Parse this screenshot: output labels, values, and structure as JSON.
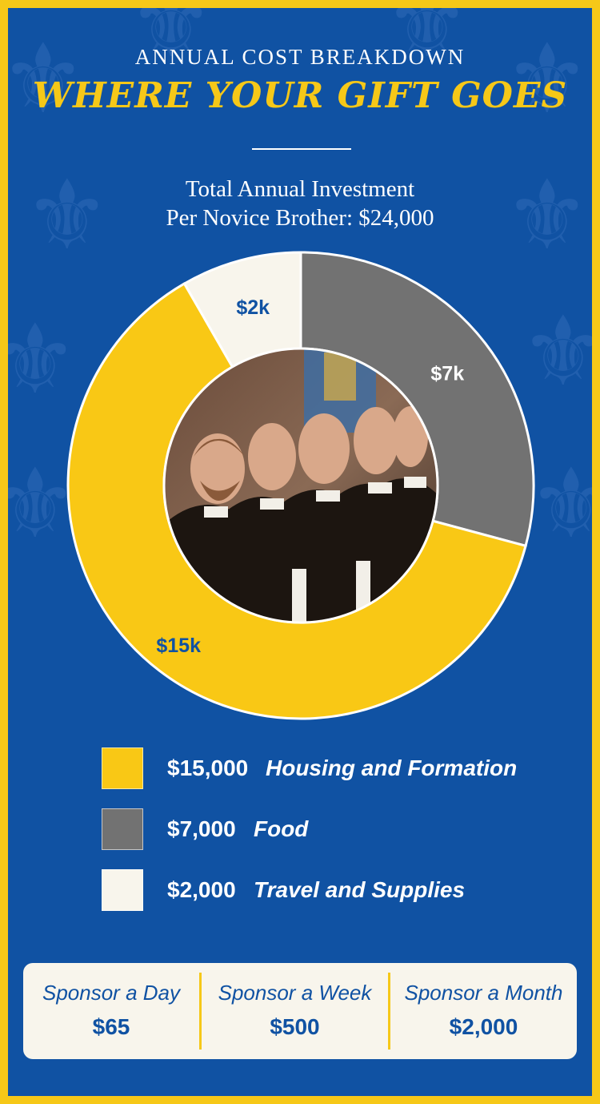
{
  "header": {
    "kicker": "ANNUAL COST BREAKDOWN",
    "headline": "WHERE YOUR GIFT GOES",
    "subtitle_line1": "Total Annual Investment",
    "subtitle_line2": "Per Novice Brother: $24,000"
  },
  "colors": {
    "background": "#1052a3",
    "border": "#f6c818",
    "housing": "#f9c815",
    "food": "#727272",
    "travel": "#f8f5ec",
    "slice_label_dark": "#1052a3",
    "slice_label_light": "#ffffff"
  },
  "chart_data": {
    "type": "pie",
    "style": "donut",
    "title": "Total Annual Investment Per Novice Brother: $24,000",
    "total": 24000,
    "slices": [
      {
        "label": "$7k",
        "value": 7000,
        "color": "#727272"
      },
      {
        "label": "$15k",
        "value": 15000,
        "color": "#f9c815"
      },
      {
        "label": "$2k",
        "value": 2000,
        "color": "#f8f5ec"
      }
    ],
    "center_image": "photo of novice brothers in Dominican habits"
  },
  "legend": [
    {
      "amount": "$15,000",
      "description": "Housing and Formation",
      "color": "#f9c815"
    },
    {
      "amount": "$7,000",
      "description": "Food",
      "color": "#727272"
    },
    {
      "amount": "$2,000",
      "description": "Travel and Supplies",
      "color": "#f8f5ec"
    }
  ],
  "sponsor": [
    {
      "label": "Sponsor a Day",
      "amount": "$65"
    },
    {
      "label": "Sponsor a Week",
      "amount": "$500"
    },
    {
      "label": "Sponsor a Month",
      "amount": "$2,000"
    }
  ]
}
